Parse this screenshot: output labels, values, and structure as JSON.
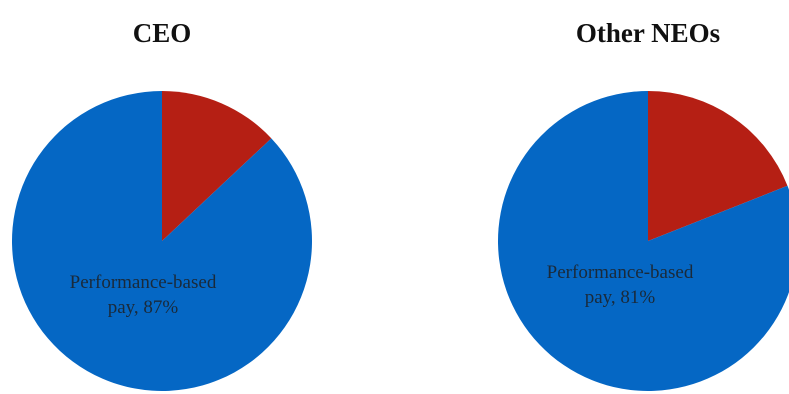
{
  "colors": {
    "performance_based": "#0567c4",
    "other": "#b51f14"
  },
  "chart_data": [
    {
      "type": "pie",
      "title": "CEO",
      "slices": [
        {
          "label_line1": "Performance-based",
          "label_line2": "pay, 87%",
          "value": 87,
          "color": "#0567c4"
        },
        {
          "label_line1": "",
          "label_line2": "",
          "value": 13,
          "color": "#b51f14"
        }
      ]
    },
    {
      "type": "pie",
      "title": "Other NEOs",
      "slices": [
        {
          "label_line1": "Performance-based",
          "label_line2": "pay, 81%",
          "value": 81,
          "color": "#0567c4"
        },
        {
          "label_line1": "",
          "label_line2": "",
          "value": 19,
          "color": "#b51f14"
        }
      ]
    }
  ]
}
